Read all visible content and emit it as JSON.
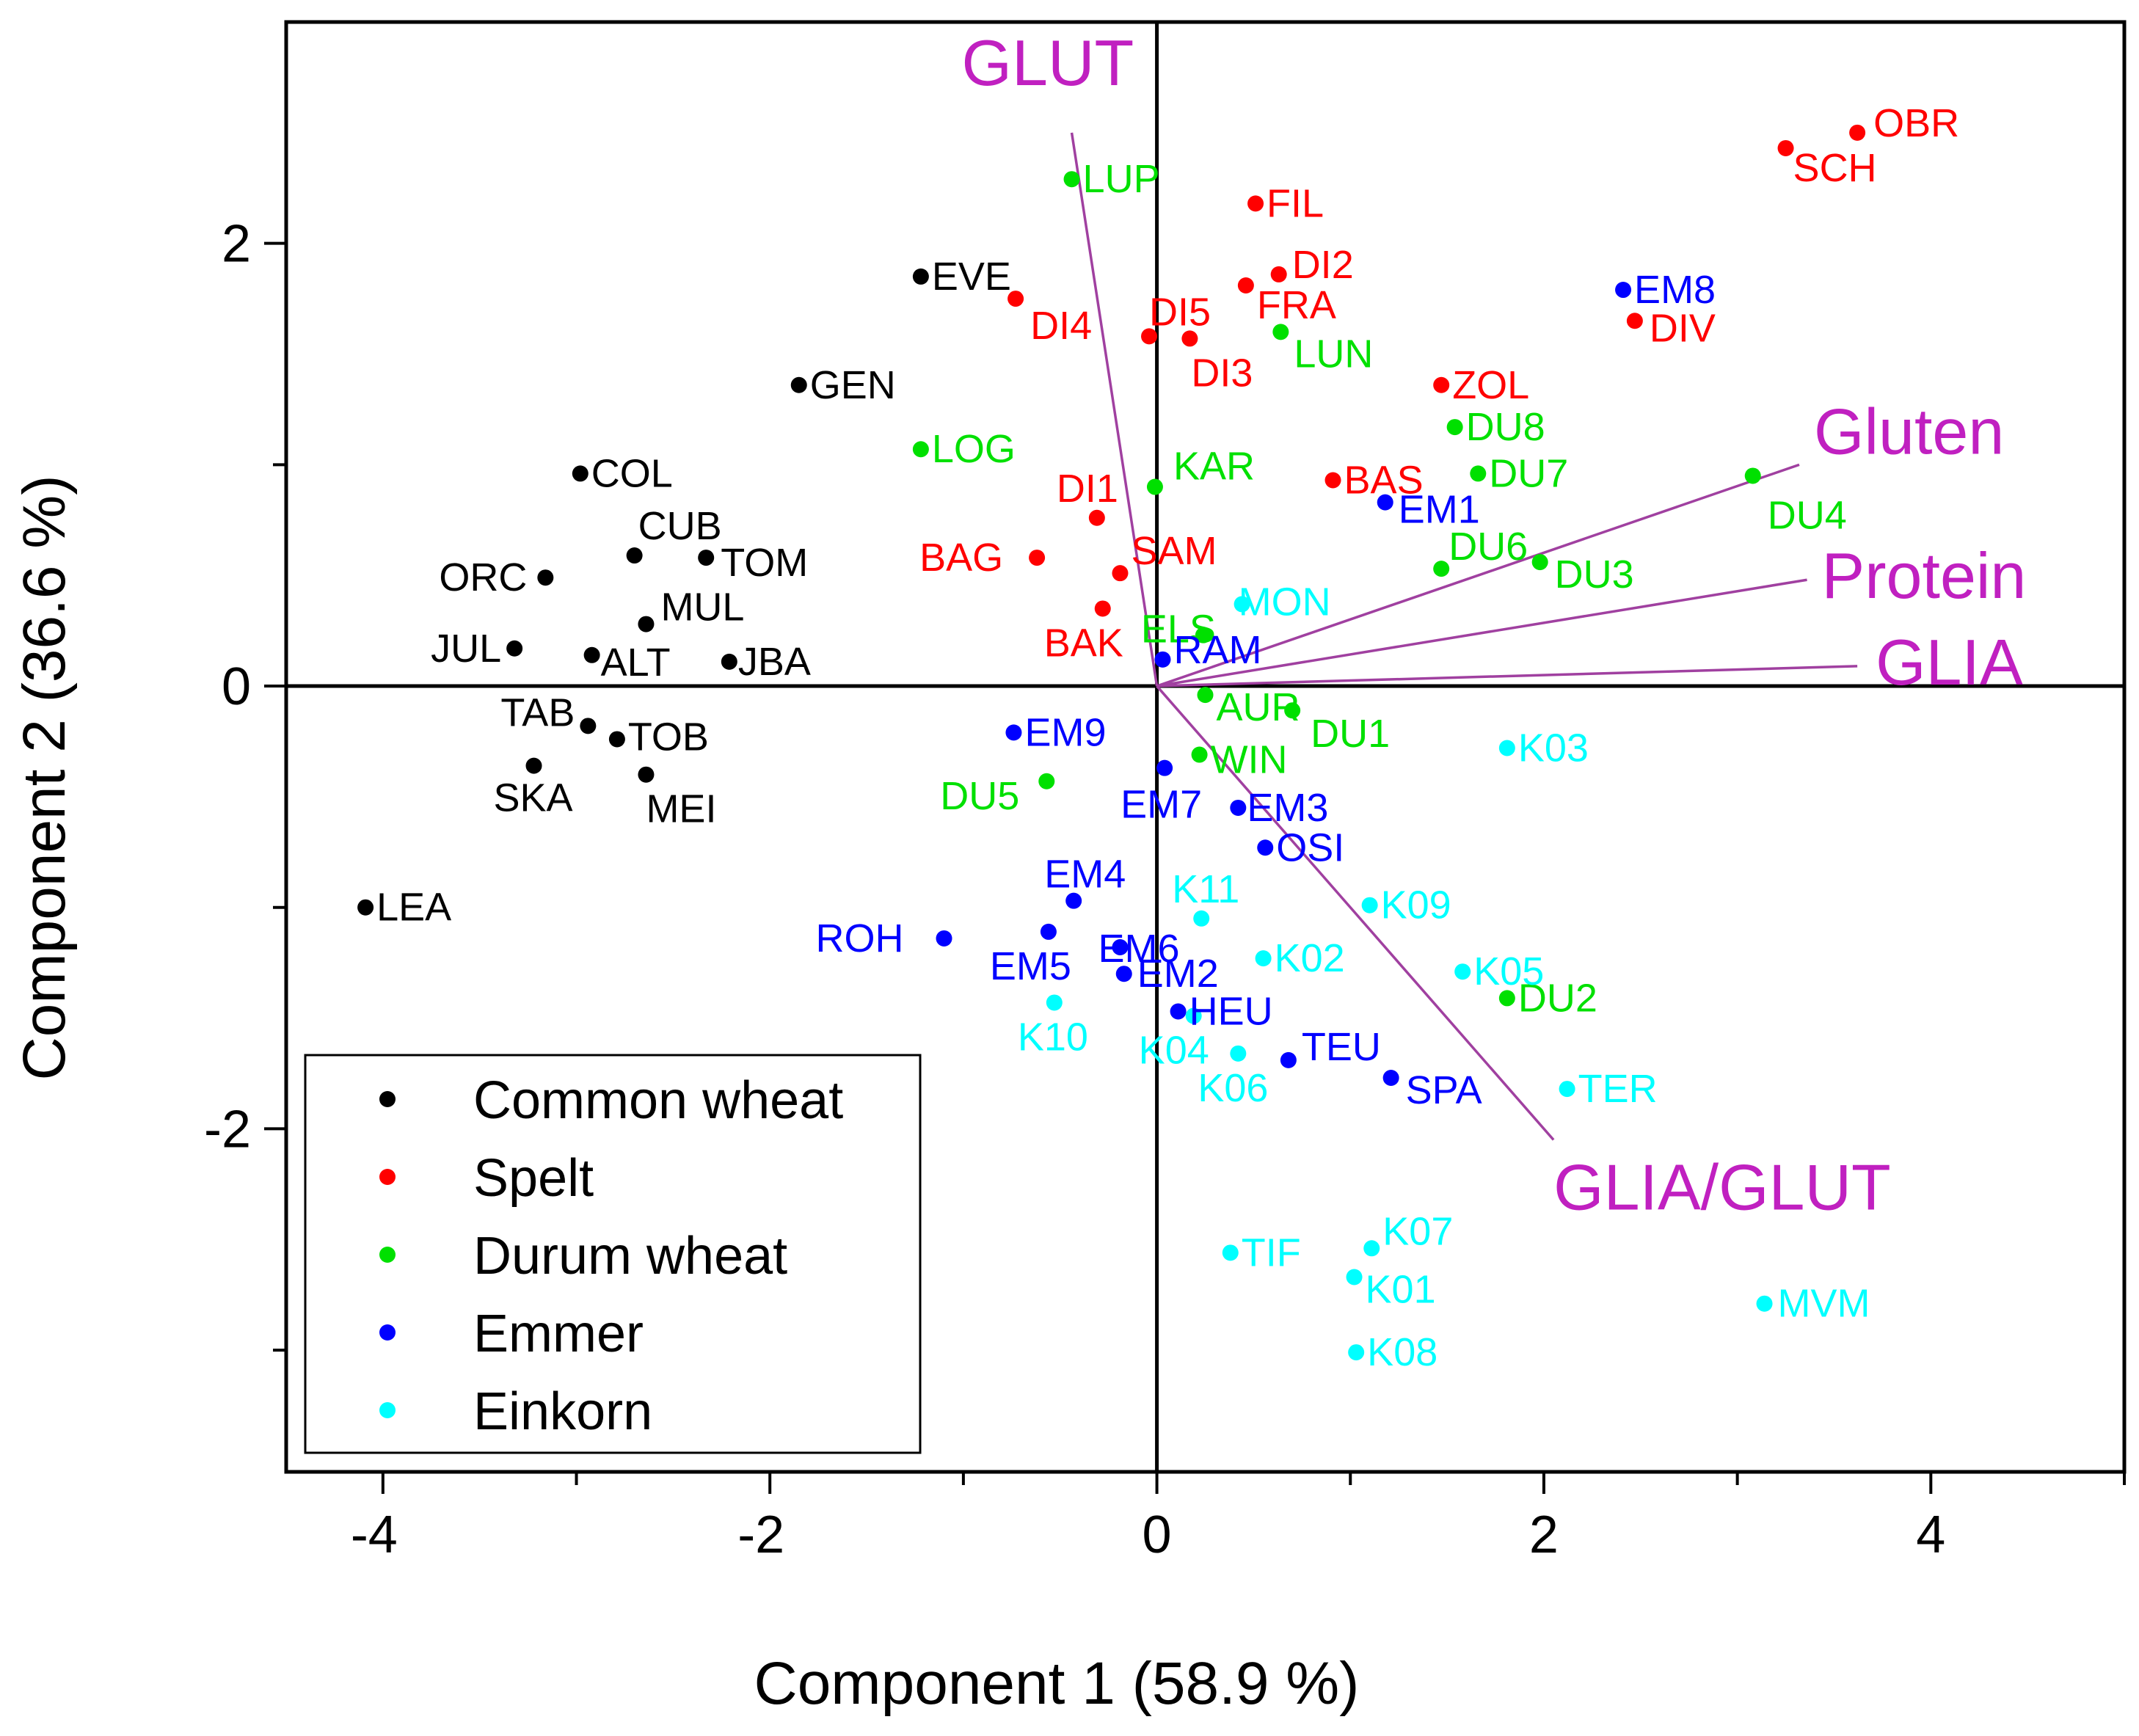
{
  "chart_data": {
    "type": "scatter",
    "subtype": "pca-biplot",
    "title": "",
    "xlabel": "Component 1 (58.9 %)",
    "ylabel": "Component 2 (36.6 %)",
    "xlim": [
      -4.5,
      5.0
    ],
    "ylim": [
      -3.55,
      3.0
    ],
    "x_ticks": [
      {
        "value": -4,
        "label": "-4"
      },
      {
        "value": -2,
        "label": "-2"
      },
      {
        "value": 0,
        "label": "0"
      },
      {
        "value": 2,
        "label": "2"
      },
      {
        "value": 4,
        "label": "4"
      }
    ],
    "y_ticks": [
      {
        "value": -2,
        "label": "-2"
      },
      {
        "value": 0,
        "label": "0"
      },
      {
        "value": 2,
        "label": "2"
      }
    ],
    "grid": false,
    "legend_position": "bottom-left",
    "groups": [
      {
        "name": "Common wheat",
        "color": "#000000"
      },
      {
        "name": "Spelt",
        "color": "#ff0000"
      },
      {
        "name": "Durum wheat",
        "color": "#00e000"
      },
      {
        "name": "Emmer",
        "color": "#0000ff"
      },
      {
        "name": "Einkorn",
        "color": "#00ffff"
      }
    ],
    "vector_color": "#a040a0",
    "vector_label_color": "#c020c0",
    "loadings": [
      {
        "label": "GLUT",
        "x": -0.44,
        "y": 2.5
      },
      {
        "label": "Gluten",
        "x": 3.32,
        "y": 1.0
      },
      {
        "label": "Protein",
        "x": 3.36,
        "y": 0.48
      },
      {
        "label": "GLIA",
        "x": 3.62,
        "y": 0.09
      },
      {
        "label": "GLIA/GLUT",
        "x": 2.05,
        "y": -2.05
      }
    ],
    "points": [
      {
        "label": "EVE",
        "group": 0,
        "x": -1.22,
        "y": 1.85
      },
      {
        "label": "GEN",
        "group": 0,
        "x": -1.85,
        "y": 1.36
      },
      {
        "label": "COL",
        "group": 0,
        "x": -2.98,
        "y": 0.96
      },
      {
        "label": "CUB",
        "group": 0,
        "x": -2.7,
        "y": 0.59
      },
      {
        "label": "TOM",
        "group": 0,
        "x": -2.33,
        "y": 0.58
      },
      {
        "label": "ORC",
        "group": 0,
        "x": -3.16,
        "y": 0.49
      },
      {
        "label": "MUL",
        "group": 0,
        "x": -2.64,
        "y": 0.28
      },
      {
        "label": "JUL",
        "group": 0,
        "x": -3.32,
        "y": 0.17
      },
      {
        "label": "ALT",
        "group": 0,
        "x": -2.92,
        "y": 0.14
      },
      {
        "label": "JBA",
        "group": 0,
        "x": -2.21,
        "y": 0.11
      },
      {
        "label": "TAB",
        "group": 0,
        "x": -2.94,
        "y": -0.18
      },
      {
        "label": "TOB",
        "group": 0,
        "x": -2.79,
        "y": -0.24
      },
      {
        "label": "SKA",
        "group": 0,
        "x": -3.22,
        "y": -0.36
      },
      {
        "label": "MEI",
        "group": 0,
        "x": -2.64,
        "y": -0.4
      },
      {
        "label": "LEA",
        "group": 0,
        "x": -4.09,
        "y": -1.0
      },
      {
        "label": "OBR",
        "group": 1,
        "x": 3.62,
        "y": 2.5
      },
      {
        "label": "SCH",
        "group": 1,
        "x": 3.25,
        "y": 2.43
      },
      {
        "label": "FIL",
        "group": 1,
        "x": 0.51,
        "y": 2.18
      },
      {
        "label": "DI2",
        "group": 1,
        "x": 0.63,
        "y": 1.86
      },
      {
        "label": "FRA",
        "group": 1,
        "x": 0.46,
        "y": 1.81
      },
      {
        "label": "DI4",
        "group": 1,
        "x": -0.73,
        "y": 1.75
      },
      {
        "label": "DI5",
        "group": 1,
        "x": -0.04,
        "y": 1.58
      },
      {
        "label": "DI3",
        "group": 1,
        "x": 0.17,
        "y": 1.57
      },
      {
        "label": "DIV",
        "group": 1,
        "x": 2.47,
        "y": 1.65
      },
      {
        "label": "ZOL",
        "group": 1,
        "x": 1.47,
        "y": 1.36
      },
      {
        "label": "BAS",
        "group": 1,
        "x": 0.91,
        "y": 0.93
      },
      {
        "label": "DI1",
        "group": 1,
        "x": -0.31,
        "y": 0.76
      },
      {
        "label": "BAG",
        "group": 1,
        "x": -0.62,
        "y": 0.58
      },
      {
        "label": "SAM",
        "group": 1,
        "x": -0.19,
        "y": 0.51
      },
      {
        "label": "BAK",
        "group": 1,
        "x": -0.28,
        "y": 0.35
      },
      {
        "label": "LUP",
        "group": 2,
        "x": -0.44,
        "y": 2.29
      },
      {
        "label": "LUN",
        "group": 2,
        "x": 0.64,
        "y": 1.6
      },
      {
        "label": "LOG",
        "group": 2,
        "x": -1.22,
        "y": 1.07
      },
      {
        "label": "KAR",
        "group": 2,
        "x": -0.01,
        "y": 0.9
      },
      {
        "label": "DU8",
        "group": 2,
        "x": 1.54,
        "y": 1.17
      },
      {
        "label": "DU7",
        "group": 2,
        "x": 1.66,
        "y": 0.96
      },
      {
        "label": "DU4",
        "group": 2,
        "x": 3.08,
        "y": 0.95
      },
      {
        "label": "DU6",
        "group": 2,
        "x": 1.47,
        "y": 0.53
      },
      {
        "label": "DU3",
        "group": 2,
        "x": 1.98,
        "y": 0.56
      },
      {
        "label": "ELS",
        "group": 2,
        "x": 0.24,
        "y": 0.23
      },
      {
        "label": "AUR",
        "group": 2,
        "x": 0.25,
        "y": -0.04
      },
      {
        "label": "DU1",
        "group": 2,
        "x": 0.7,
        "y": -0.11
      },
      {
        "label": "WIN",
        "group": 2,
        "x": 0.22,
        "y": -0.31
      },
      {
        "label": "DU5",
        "group": 2,
        "x": -0.57,
        "y": -0.43
      },
      {
        "label": "DU2",
        "group": 2,
        "x": 1.81,
        "y": -1.41
      },
      {
        "label": "EM8",
        "group": 3,
        "x": 2.41,
        "y": 1.79
      },
      {
        "label": "EM1",
        "group": 3,
        "x": 1.18,
        "y": 0.83
      },
      {
        "label": "RAM",
        "group": 3,
        "x": 0.03,
        "y": 0.12
      },
      {
        "label": "EM9",
        "group": 3,
        "x": -0.74,
        "y": -0.21
      },
      {
        "label": "EM7",
        "group": 3,
        "x": 0.04,
        "y": -0.37
      },
      {
        "label": "EM3",
        "group": 3,
        "x": 0.42,
        "y": -0.55
      },
      {
        "label": "OSI",
        "group": 3,
        "x": 0.56,
        "y": -0.73
      },
      {
        "label": "EM4",
        "group": 3,
        "x": -0.43,
        "y": -0.97
      },
      {
        "label": "EM6",
        "group": 3,
        "x": -0.19,
        "y": -1.18
      },
      {
        "label": "ROH",
        "group": 3,
        "x": -1.1,
        "y": -1.14
      },
      {
        "label": "EM5",
        "group": 3,
        "x": -0.56,
        "y": -1.11
      },
      {
        "label": "EM2",
        "group": 3,
        "x": -0.17,
        "y": -1.3
      },
      {
        "label": "HEU",
        "group": 3,
        "x": 0.11,
        "y": -1.47
      },
      {
        "label": "TEU",
        "group": 3,
        "x": 0.68,
        "y": -1.69
      },
      {
        "label": "SPA",
        "group": 3,
        "x": 1.21,
        "y": -1.77
      },
      {
        "label": "MON",
        "group": 4,
        "x": 0.44,
        "y": 0.37
      },
      {
        "label": "K03",
        "group": 4,
        "x": 1.81,
        "y": -0.28
      },
      {
        "label": "K11",
        "group": 4,
        "x": 0.23,
        "y": -1.05
      },
      {
        "label": "K09",
        "group": 4,
        "x": 1.1,
        "y": -0.99
      },
      {
        "label": "K05",
        "group": 4,
        "x": 1.58,
        "y": -1.29
      },
      {
        "label": "K02",
        "group": 4,
        "x": 0.55,
        "y": -1.23
      },
      {
        "label": "K10",
        "group": 4,
        "x": -0.53,
        "y": -1.43
      },
      {
        "label": "K04",
        "group": 4,
        "x": 0.19,
        "y": -1.49
      },
      {
        "label": "K06",
        "group": 4,
        "x": 0.42,
        "y": -1.66
      },
      {
        "label": "TER",
        "group": 4,
        "x": 2.12,
        "y": -1.82
      },
      {
        "label": "TIF",
        "group": 4,
        "x": 0.38,
        "y": -2.56
      },
      {
        "label": "K07",
        "group": 4,
        "x": 1.11,
        "y": -2.54
      },
      {
        "label": "K01",
        "group": 4,
        "x": 1.02,
        "y": -2.67
      },
      {
        "label": "K08",
        "group": 4,
        "x": 1.03,
        "y": -3.01
      },
      {
        "label": "MVM",
        "group": 4,
        "x": 3.14,
        "y": -2.79
      }
    ]
  }
}
